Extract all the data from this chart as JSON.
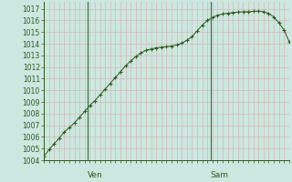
{
  "background_color": "#cce8e0",
  "grid_color_h": "#d4b8b8",
  "grid_color_v": "#d4b8b8",
  "line_color": "#2d5a1b",
  "marker_color": "#2d5a1b",
  "axis_color": "#2d5a1b",
  "tick_label_color": "#2d5a1b",
  "ylim": [
    1004,
    1017.6
  ],
  "yticks": [
    1004,
    1005,
    1006,
    1007,
    1008,
    1009,
    1010,
    1011,
    1012,
    1013,
    1014,
    1015,
    1016,
    1017
  ],
  "xtick_positions": [
    0.18,
    0.68
  ],
  "xtick_labels": [
    "Ven",
    "Sam"
  ],
  "x_values": [
    0.0,
    0.021,
    0.042,
    0.063,
    0.083,
    0.104,
    0.125,
    0.146,
    0.167,
    0.188,
    0.208,
    0.229,
    0.25,
    0.271,
    0.292,
    0.313,
    0.333,
    0.354,
    0.375,
    0.396,
    0.417,
    0.438,
    0.458,
    0.479,
    0.5,
    0.521,
    0.542,
    0.563,
    0.583,
    0.604,
    0.625,
    0.646,
    0.667,
    0.688,
    0.708,
    0.729,
    0.75,
    0.771,
    0.792,
    0.813,
    0.833,
    0.854,
    0.875,
    0.896,
    0.917,
    0.938,
    0.958,
    0.979,
    1.0
  ],
  "y_values": [
    1004.3,
    1004.9,
    1005.4,
    1005.9,
    1006.4,
    1006.8,
    1007.2,
    1007.7,
    1008.2,
    1008.7,
    1009.1,
    1009.6,
    1010.1,
    1010.6,
    1011.1,
    1011.6,
    1012.1,
    1012.5,
    1012.9,
    1013.2,
    1013.45,
    1013.55,
    1013.65,
    1013.7,
    1013.75,
    1013.8,
    1013.9,
    1014.05,
    1014.3,
    1014.6,
    1015.1,
    1015.6,
    1016.0,
    1016.25,
    1016.45,
    1016.55,
    1016.62,
    1016.68,
    1016.72,
    1016.74,
    1016.75,
    1016.78,
    1016.8,
    1016.75,
    1016.6,
    1016.3,
    1015.8,
    1015.2,
    1014.2
  ],
  "vline_positions": [
    0.18,
    0.68
  ],
  "vline_color": "#3a6b3a",
  "n_xgrid": 48
}
